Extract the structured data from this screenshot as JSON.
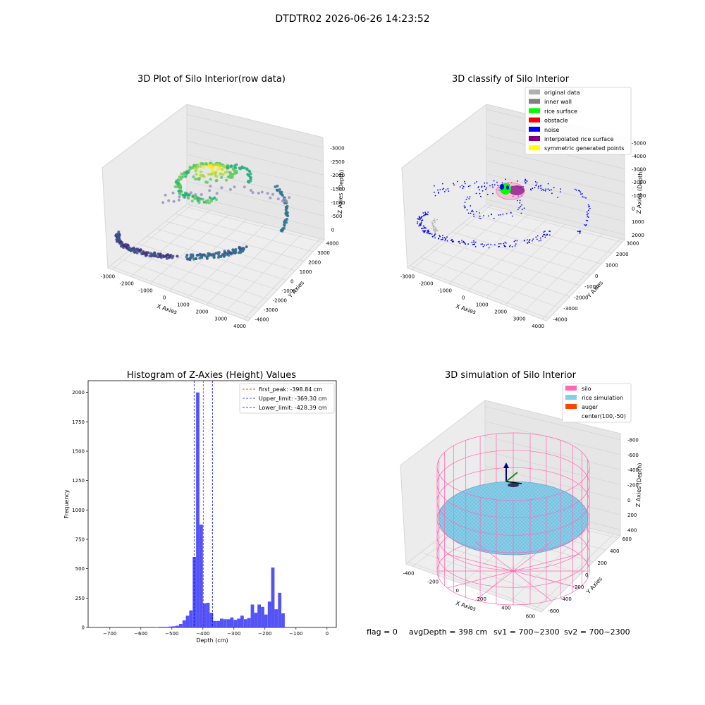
{
  "figure": {
    "suptitle": "DTDTR02 2026-06-26 14:23:52",
    "footer": {
      "flag": "flag = 0",
      "avg": "avgDepth = 398 cm",
      "sv1": "sv1 = 700~2300",
      "sv2": "sv2 = 700~2300"
    }
  },
  "chart_data": [
    {
      "type": "scatter",
      "title": "3D Plot of Silo Interior(row data)",
      "xlabel": "X Axies",
      "ylabel": "Y Axies",
      "zlabel": "Z Axies (Depth)",
      "xticks": [
        "-3000",
        "-2000",
        "-1000",
        "0",
        "1000",
        "2000",
        "3000",
        "4000"
      ],
      "yticks": [
        "-4000",
        "-3000",
        "-2000",
        "-1000",
        "0",
        "1000",
        "2000",
        "3000",
        "4000"
      ],
      "zticks": [
        "0",
        "-500",
        "-1000",
        "-1500",
        "-2000",
        "-2500",
        "-3000"
      ],
      "colormap": "viridis"
    },
    {
      "type": "scatter",
      "title": "3D classify of Silo Interior",
      "xlabel": "X Axies",
      "ylabel": "Y Axies",
      "zlabel": "Z Axies (Depth)",
      "xticks": [
        "-3000",
        "-2000",
        "-1000",
        "0",
        "1000",
        "2000",
        "3000",
        "4000"
      ],
      "yticks": [
        "-4000",
        "-3000",
        "-2000",
        "-1000",
        "0",
        "1000",
        "2000",
        "3000"
      ],
      "zticks": [
        "2000",
        "1000",
        "0",
        "-1000",
        "-2000",
        "-3000",
        "-4000",
        "-5000"
      ],
      "legend": [
        {
          "label": "original data",
          "color": "#b0b0b0"
        },
        {
          "label": "inner wall",
          "color": "#808080"
        },
        {
          "label": "rice surface",
          "color": "#00ff00"
        },
        {
          "label": "obstacle",
          "color": "#ff0000"
        },
        {
          "label": "noise",
          "color": "#0000ff"
        },
        {
          "label": "interpolated rice surface",
          "color": "#800080"
        },
        {
          "label": "symmetric generated points",
          "color": "#ffff00"
        }
      ],
      "legend_position": "top-right"
    },
    {
      "type": "bar",
      "title": "Histogram of Z-Axies (Height) Values",
      "xlabel": "Depth (cm)",
      "ylabel": "Frequency",
      "xlim": [
        -770,
        30
      ],
      "ylim": [
        0,
        2100
      ],
      "xticks": [
        -700,
        -600,
        -500,
        -400,
        -300,
        -200,
        -100,
        0
      ],
      "yticks": [
        0,
        250,
        500,
        750,
        1000,
        1250,
        1500,
        1750,
        2000
      ],
      "bar_color": "#4a4af5",
      "bins": [
        {
          "x": -615,
          "count": 3
        },
        {
          "x": -555,
          "count": 3
        },
        {
          "x": -543,
          "count": 5
        },
        {
          "x": -532,
          "count": 5
        },
        {
          "x": -521,
          "count": 5
        },
        {
          "x": -510,
          "count": 8
        },
        {
          "x": -499,
          "count": 10
        },
        {
          "x": -488,
          "count": 15
        },
        {
          "x": -477,
          "count": 30
        },
        {
          "x": -466,
          "count": 60
        },
        {
          "x": -455,
          "count": 100
        },
        {
          "x": -444,
          "count": 145
        },
        {
          "x": -433,
          "count": 600
        },
        {
          "x": -422,
          "count": 2000
        },
        {
          "x": -411,
          "count": 875
        },
        {
          "x": -400,
          "count": 205
        },
        {
          "x": -389,
          "count": 210
        },
        {
          "x": -378,
          "count": 125
        },
        {
          "x": -367,
          "count": 55
        },
        {
          "x": -356,
          "count": 55
        },
        {
          "x": -345,
          "count": 75
        },
        {
          "x": -334,
          "count": 70
        },
        {
          "x": -323,
          "count": 70
        },
        {
          "x": -312,
          "count": 85
        },
        {
          "x": -301,
          "count": 65
        },
        {
          "x": -290,
          "count": 75
        },
        {
          "x": -279,
          "count": 100
        },
        {
          "x": -268,
          "count": 70
        },
        {
          "x": -257,
          "count": 80
        },
        {
          "x": -246,
          "count": 195
        },
        {
          "x": -235,
          "count": 125
        },
        {
          "x": -224,
          "count": 195
        },
        {
          "x": -213,
          "count": 175
        },
        {
          "x": -202,
          "count": 110
        },
        {
          "x": -191,
          "count": 220
        },
        {
          "x": -180,
          "count": 510
        },
        {
          "x": -169,
          "count": 155
        },
        {
          "x": -158,
          "count": 295
        },
        {
          "x": -147,
          "count": 120
        }
      ],
      "bins_note": "",
      "lines": [
        {
          "label": "first_peak: -398.84 cm",
          "x": -398.84,
          "color": "#ff0000"
        },
        {
          "label": "Upper_limit: -369.30 cm",
          "x": -369.3,
          "color": "#0000ff"
        },
        {
          "label": "Lower_limit: -428.39 cm",
          "x": -428.39,
          "color": "#0000ff"
        }
      ],
      "legend_position": "top-right"
    },
    {
      "type": "surface",
      "title": "3D simulation of Silo Interior",
      "xlabel": "X Axies",
      "ylabel": "Y Axies",
      "zlabel": "Z Axies (Depth)",
      "xticks": [
        "-400",
        "-200",
        "0",
        "200",
        "400",
        "600"
      ],
      "yticks": [
        "-600",
        "-400",
        "-200",
        "0",
        "200",
        "400",
        "600"
      ],
      "zticks": [
        "400",
        "200",
        "0",
        "-200",
        "-400",
        "-600",
        "-800"
      ],
      "legend": [
        {
          "label": "silo",
          "color": "#ff69b4"
        },
        {
          "label": "rice simulation",
          "color": "#87ceeb"
        },
        {
          "label": "auger",
          "color": "#ff4500"
        },
        {
          "label": "center(100,-50)",
          "color": ""
        }
      ],
      "legend_position": "top-right"
    }
  ]
}
